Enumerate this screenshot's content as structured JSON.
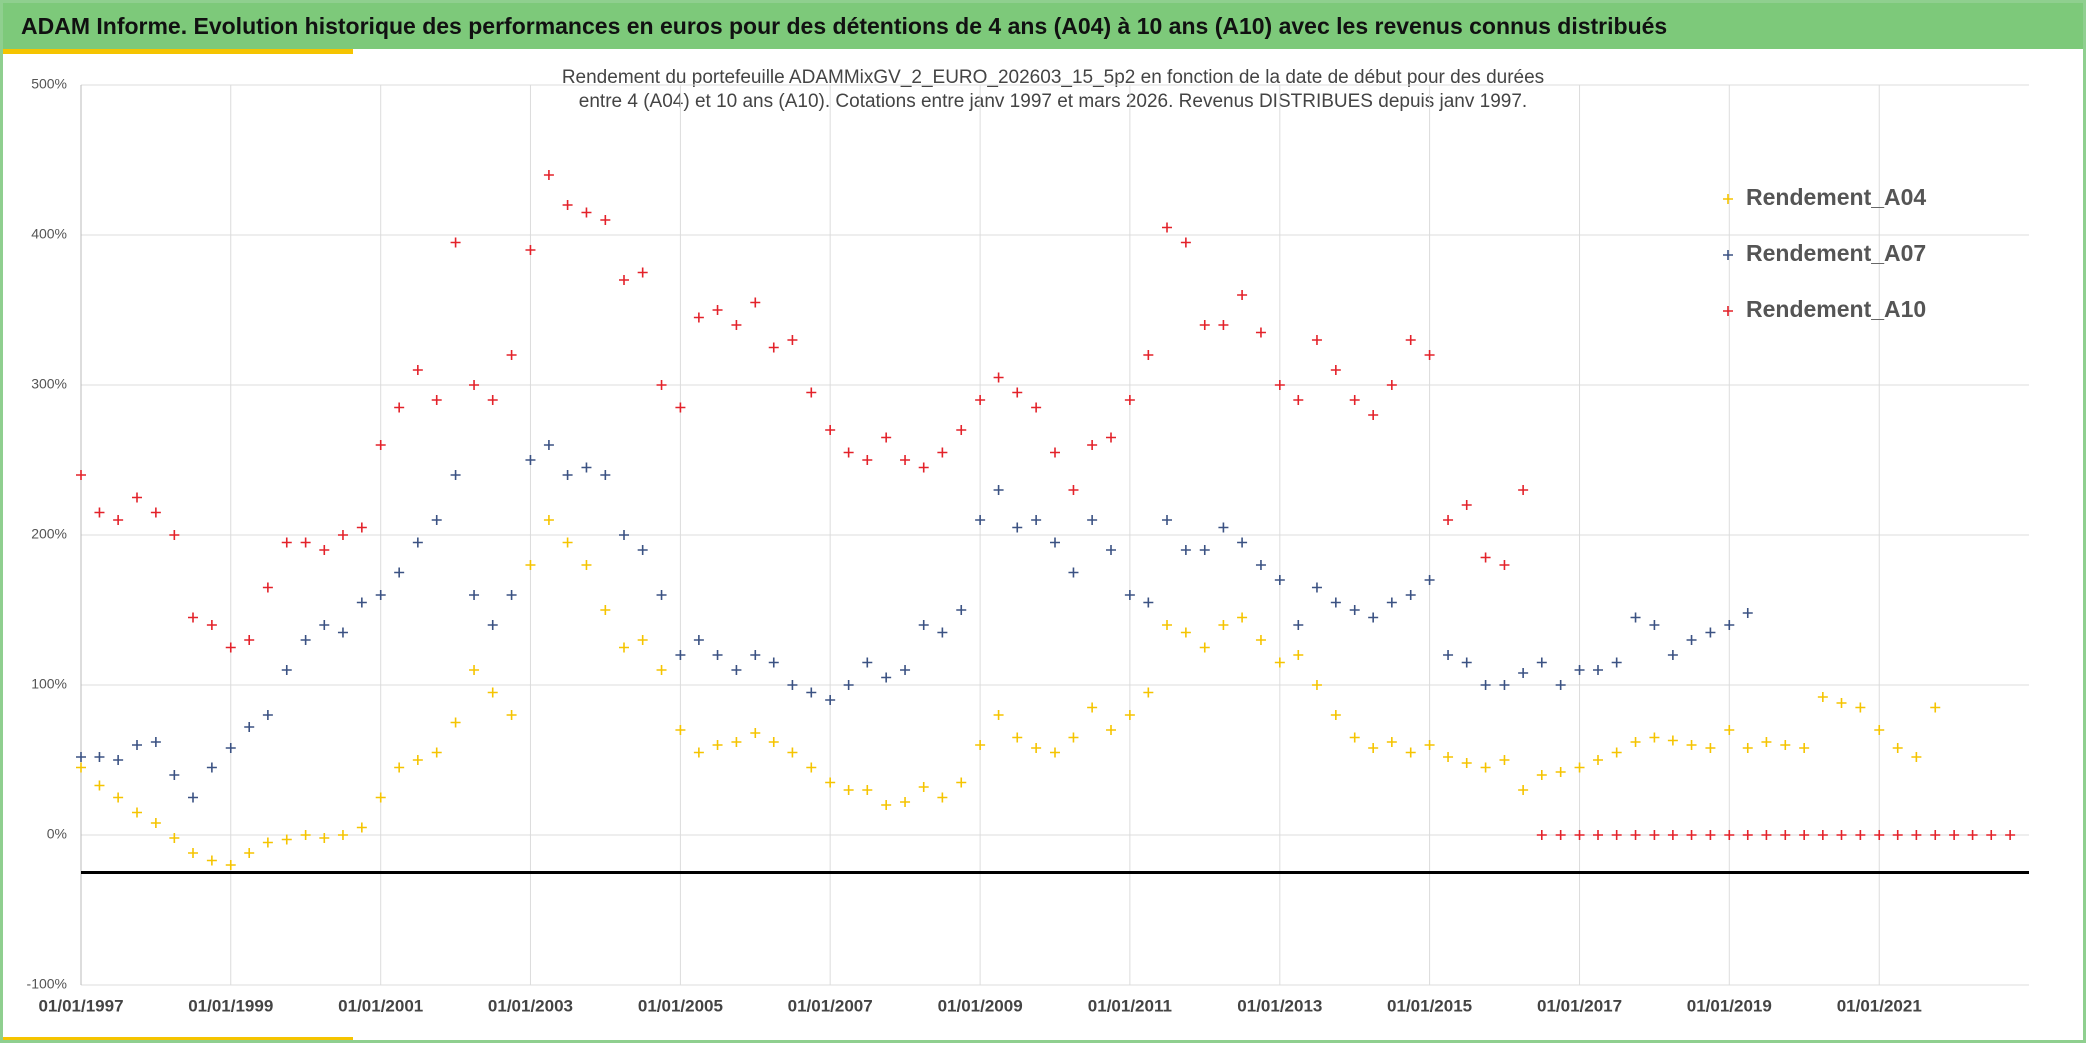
{
  "header": {
    "title": "ADAM Informe. Evolution historique des performances en euros pour des détentions de 4 ans (A04) à 10 ans (A10) avec les revenus connus distribués"
  },
  "chart_data": {
    "type": "scatter",
    "title": [
      "Rendement du portefeuille ADAMMixGV_2_EURO_202603_15_5p2  en fonction de la date de début pour des durées",
      "entre 4 (A04) et 10 ans (A10). Cotations entre janv 1997 et mars 2026. Revenus DISTRIBUES depuis janv 1997."
    ],
    "x": [
      "1997-01",
      "1997-04",
      "1997-07",
      "1997-10",
      "1998-01",
      "1998-04",
      "1998-07",
      "1998-10",
      "1999-01",
      "1999-04",
      "1999-07",
      "1999-10",
      "2000-01",
      "2000-04",
      "2000-07",
      "2000-10",
      "2001-01",
      "2001-04",
      "2001-07",
      "2001-10",
      "2002-01",
      "2002-04",
      "2002-07",
      "2002-10",
      "2003-01",
      "2003-04",
      "2003-07",
      "2003-10",
      "2004-01",
      "2004-04",
      "2004-07",
      "2004-10",
      "2005-01",
      "2005-04",
      "2005-07",
      "2005-10",
      "2006-01",
      "2006-04",
      "2006-07",
      "2006-10",
      "2007-01",
      "2007-04",
      "2007-07",
      "2007-10",
      "2008-01",
      "2008-04",
      "2008-07",
      "2008-10",
      "2009-01",
      "2009-04",
      "2009-07",
      "2009-10",
      "2010-01",
      "2010-04",
      "2010-07",
      "2010-10",
      "2011-01",
      "2011-04",
      "2011-07",
      "2011-10",
      "2012-01",
      "2012-04",
      "2012-07",
      "2012-10",
      "2013-01",
      "2013-04",
      "2013-07",
      "2013-10",
      "2014-01",
      "2014-04",
      "2014-07",
      "2014-10",
      "2015-01",
      "2015-04",
      "2015-07",
      "2015-10",
      "2016-01",
      "2016-04",
      "2016-07",
      "2016-10",
      "2017-01",
      "2017-04",
      "2017-07",
      "2017-10",
      "2018-01",
      "2018-04",
      "2018-07",
      "2018-10",
      "2019-01",
      "2019-04",
      "2019-07",
      "2019-10",
      "2020-01",
      "2020-04",
      "2020-07",
      "2020-10",
      "2021-01",
      "2021-04",
      "2021-07",
      "2021-10",
      "2022-01",
      "2022-04",
      "2022-07",
      "2022-10"
    ],
    "series": [
      {
        "name": "Rendement_A04",
        "color": "#f5c400",
        "values": [
          45,
          33,
          25,
          15,
          8,
          -2,
          -12,
          -17,
          -20,
          -12,
          -5,
          -3,
          0,
          -2,
          0,
          5,
          25,
          45,
          50,
          55,
          75,
          110,
          95,
          80,
          180,
          210,
          195,
          180,
          150,
          125,
          130,
          110,
          70,
          55,
          60,
          62,
          68,
          62,
          55,
          45,
          35,
          30,
          30,
          20,
          22,
          32,
          25,
          35,
          60,
          80,
          65,
          58,
          55,
          65,
          85,
          70,
          80,
          95,
          140,
          135,
          125,
          140,
          145,
          130,
          115,
          120,
          100,
          80,
          65,
          58,
          62,
          55,
          60,
          52,
          48,
          45,
          50,
          30,
          40,
          42,
          45,
          50,
          55,
          62,
          65,
          63,
          60,
          58,
          70,
          58,
          62,
          60,
          58,
          92,
          88,
          85,
          70,
          58,
          52,
          85,
          null,
          null,
          null,
          null
        ]
      },
      {
        "name": "Rendement_A07",
        "color": "#3b5283",
        "values": [
          52,
          52,
          50,
          60,
          62,
          40,
          25,
          45,
          58,
          72,
          80,
          110,
          130,
          140,
          135,
          155,
          160,
          175,
          195,
          210,
          240,
          160,
          140,
          160,
          250,
          260,
          240,
          245,
          240,
          200,
          190,
          160,
          120,
          130,
          120,
          110,
          120,
          115,
          100,
          95,
          90,
          100,
          115,
          105,
          110,
          140,
          135,
          150,
          210,
          230,
          205,
          210,
          195,
          175,
          210,
          190,
          160,
          155,
          210,
          190,
          190,
          205,
          195,
          180,
          170,
          140,
          165,
          155,
          150,
          145,
          155,
          160,
          170,
          120,
          115,
          100,
          100,
          108,
          115,
          100,
          110,
          110,
          115,
          145,
          140,
          120,
          130,
          135,
          140,
          148,
          null,
          null,
          null,
          null,
          null,
          null,
          null,
          null,
          null,
          null,
          null,
          null,
          null,
          null
        ]
      },
      {
        "name": "Rendement_A10",
        "color": "#e3222a",
        "values": [
          240,
          215,
          210,
          225,
          215,
          200,
          145,
          140,
          125,
          130,
          165,
          195,
          195,
          190,
          200,
          205,
          260,
          285,
          310,
          290,
          395,
          300,
          290,
          320,
          390,
          440,
          420,
          415,
          410,
          370,
          375,
          300,
          285,
          345,
          350,
          340,
          355,
          325,
          330,
          295,
          270,
          255,
          250,
          265,
          250,
          245,
          255,
          270,
          290,
          305,
          295,
          285,
          255,
          230,
          260,
          265,
          290,
          320,
          405,
          395,
          340,
          340,
          360,
          335,
          300,
          290,
          330,
          310,
          290,
          280,
          300,
          330,
          320,
          210,
          220,
          185,
          180,
          230,
          0,
          0,
          0,
          0,
          0,
          0,
          0,
          0,
          0,
          0,
          0,
          0,
          0,
          0,
          0,
          0,
          0,
          0,
          0,
          0,
          0,
          0,
          0,
          0,
          0,
          0
        ]
      }
    ],
    "xlim": [
      "1997-01-01",
      "2023-01-01"
    ],
    "xticks": [
      {
        "value": "1997-01-01",
        "label": "01/01/1997"
      },
      {
        "value": "1999-01-01",
        "label": "01/01/1999"
      },
      {
        "value": "2001-01-01",
        "label": "01/01/2001"
      },
      {
        "value": "2003-01-01",
        "label": "01/01/2003"
      },
      {
        "value": "2005-01-01",
        "label": "01/01/2005"
      },
      {
        "value": "2007-01-01",
        "label": "01/01/2007"
      },
      {
        "value": "2009-01-01",
        "label": "01/01/2009"
      },
      {
        "value": "2011-01-01",
        "label": "01/01/2011"
      },
      {
        "value": "2013-01-01",
        "label": "01/01/2013"
      },
      {
        "value": "2015-01-01",
        "label": "01/01/2015"
      },
      {
        "value": "2017-01-01",
        "label": "01/01/2017"
      },
      {
        "value": "2019-01-01",
        "label": "01/01/2019"
      },
      {
        "value": "2021-01-01",
        "label": "01/01/2021"
      }
    ],
    "ylim": [
      -100,
      500
    ],
    "yticks": [
      {
        "value": -100,
        "label": "-100%"
      },
      {
        "value": 0,
        "label": "0%"
      },
      {
        "value": 100,
        "label": "100%"
      },
      {
        "value": 200,
        "label": "200%"
      },
      {
        "value": 300,
        "label": "300%"
      },
      {
        "value": 400,
        "label": "400%"
      },
      {
        "value": 500,
        "label": "500%"
      }
    ],
    "reference_line": {
      "value": -25,
      "color": "#000000"
    },
    "grid": true,
    "legend": "right"
  }
}
